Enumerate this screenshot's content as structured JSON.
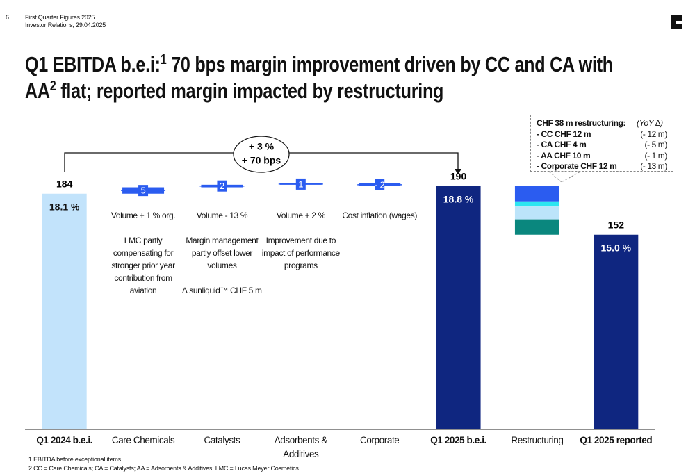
{
  "header": {
    "page": "6",
    "line1": "First Quarter Figures 2025",
    "line2": "Investor Relations, 29.04.2025"
  },
  "title": {
    "part1": "Q1 EBITDA b.e.i:",
    "sup1": "1",
    "part2": " 70 bps margin improvement driven by CC and CA with AA",
    "sup2": "2",
    "part3": " flat; reported margin impacted by restructuring"
  },
  "chart_data": {
    "type": "waterfall",
    "categories": [
      "Q1 2024 b.e.i.",
      "Care Chemicals",
      "Catalysts",
      "Adsorbents & Additives",
      "Corporate",
      "Q1 2025 b.e.i.",
      "Restructuring",
      "Q1 2025 reported"
    ],
    "values": [
      184,
      5,
      2,
      1,
      -2,
      190,
      -38,
      152
    ],
    "value_labels": [
      "184",
      "5",
      "2",
      "1",
      "- 2",
      "190",
      null,
      "152"
    ],
    "totals": [
      true,
      false,
      false,
      false,
      false,
      true,
      false,
      true
    ],
    "margin_labels": [
      "18.1 %",
      null,
      null,
      null,
      null,
      "18.8 %",
      null,
      "15.0 %"
    ],
    "colors": {
      "start": "#c2e3fb",
      "total": "#0f2680",
      "delta": "#2b5cf0"
    },
    "notes": [
      null,
      [
        "Volume + 1 % org.",
        "LMC partly compensating for stronger prior year contribution from aviation"
      ],
      [
        "Volume - 13 %",
        "Margin management partly offset lower volumes",
        "∆ sunliquid™ CHF 5 m"
      ],
      [
        "Volume + 2 %",
        "Improvement due to impact of performance programs"
      ],
      [
        "Cost inflation (wages)"
      ],
      null,
      null,
      null
    ],
    "bridge": {
      "line1": "+ 3 %",
      "line2": "+ 70 bps"
    },
    "restructuring": {
      "title": "CHF 38 m restructuring:",
      "yoy_header": "(YoY ∆)",
      "segments": [
        {
          "name": "- CC CHF 12 m",
          "value": 12,
          "yoy": "(- 12 m)",
          "color": "#2b5cf0"
        },
        {
          "name": "- CA CHF 4 m",
          "value": 4,
          "yoy": "(- 5 m)",
          "color": "#2ee6f0"
        },
        {
          "name": "- AA CHF 10 m",
          "value": 10,
          "yoy": "(- 1 m)",
          "color": "#bce4fa"
        },
        {
          "name": "- Corporate CHF 12 m",
          "value": 12,
          "yoy": "(- 13 m)",
          "color": "#0a877e"
        }
      ]
    }
  },
  "footnotes": [
    "1 EBITDA before exceptional items",
    "2 CC = Care Chemicals; CA = Catalysts; AA = Adsorbents & Additives; LMC = Lucas Meyer Cosmetics"
  ]
}
